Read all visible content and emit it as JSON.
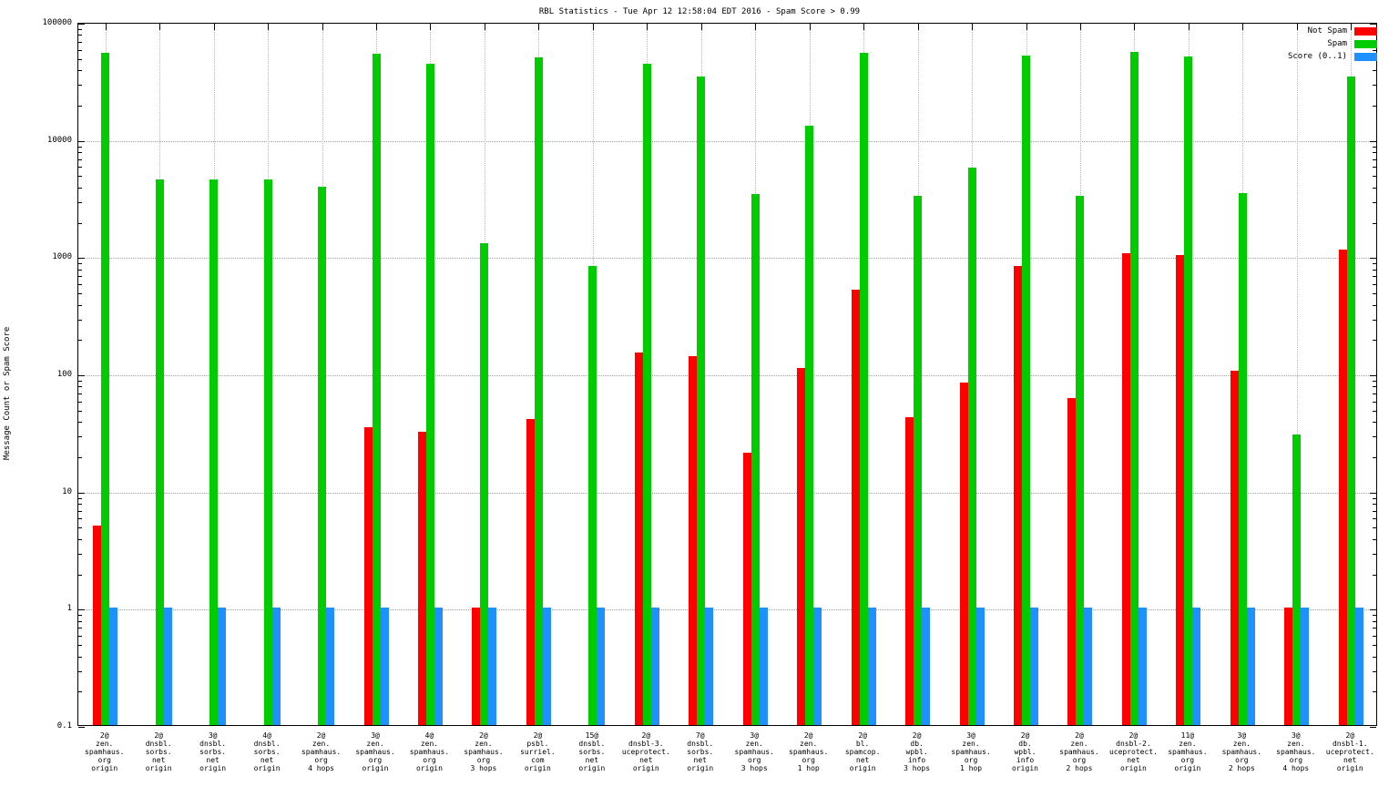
{
  "chart_data": {
    "type": "bar",
    "title": "RBL Statistics - Tue Apr 12 12:58:04 EDT 2016 - Spam Score > 0.99",
    "ylabel": "Message Count or Spam Score",
    "xlabel": "",
    "y_scale": "log",
    "ylim": [
      0.1,
      100000
    ],
    "y_ticks": [
      "100000",
      "10000",
      "1000",
      "100",
      "10",
      "1",
      "0.1"
    ],
    "grid": "dotted",
    "legend_position": "top-right",
    "categories": [
      [
        "2@",
        "zen.",
        "spamhaus.",
        "org",
        "origin"
      ],
      [
        "2@",
        "dnsbl.",
        "sorbs.",
        "net",
        "origin"
      ],
      [
        "3@",
        "dnsbl.",
        "sorbs.",
        "net",
        "origin"
      ],
      [
        "4@",
        "dnsbl.",
        "sorbs.",
        "net",
        "origin"
      ],
      [
        "2@",
        "zen.",
        "spamhaus.",
        "org",
        "4 hops"
      ],
      [
        "3@",
        "zen.",
        "spamhaus.",
        "org",
        "origin"
      ],
      [
        "4@",
        "zen.",
        "spamhaus.",
        "org",
        "origin"
      ],
      [
        "2@",
        "zen.",
        "spamhaus.",
        "org",
        "3 hops"
      ],
      [
        "2@",
        "psbl.",
        "surriel.",
        "com",
        "origin"
      ],
      [
        "15@",
        "dnsbl.",
        "sorbs.",
        "net",
        "origin"
      ],
      [
        "2@",
        "dnsbl-3.",
        "uceprotect.",
        "net",
        "origin"
      ],
      [
        "7@",
        "dnsbl.",
        "sorbs.",
        "net",
        "origin"
      ],
      [
        "3@",
        "zen.",
        "spamhaus.",
        "org",
        "3 hops"
      ],
      [
        "2@",
        "zen.",
        "spamhaus.",
        "org",
        "1 hop"
      ],
      [
        "2@",
        "bl.",
        "spamcop.",
        "net",
        "origin"
      ],
      [
        "2@",
        "db.",
        "wpbl.",
        "info",
        "3 hops"
      ],
      [
        "3@",
        "zen.",
        "spamhaus.",
        "org",
        "1 hop"
      ],
      [
        "2@",
        "db.",
        "wpbl.",
        "info",
        "origin"
      ],
      [
        "2@",
        "zen.",
        "spamhaus.",
        "org",
        "2 hops"
      ],
      [
        "2@",
        "dnsbl-2.",
        "uceprotect.",
        "net",
        "origin"
      ],
      [
        "11@",
        "zen.",
        "spamhaus.",
        "org",
        "origin"
      ],
      [
        "3@",
        "zen.",
        "spamhaus.",
        "org",
        "2 hops"
      ],
      [
        "3@",
        "zen.",
        "spamhaus.",
        "org",
        "4 hops"
      ],
      [
        "2@",
        "dnsbl-1.",
        "uceprotect.",
        "net",
        "origin"
      ]
    ],
    "series": [
      {
        "name": "Not Spam",
        "color": "#ff0000",
        "values": [
          5,
          0,
          0,
          0,
          0,
          35,
          32,
          1,
          41,
          0,
          150,
          140,
          21,
          112,
          520,
          42,
          83,
          830,
          62,
          1060,
          1030,
          105,
          1,
          1140
        ]
      },
      {
        "name": "Spam",
        "color": "#00cc00",
        "values": [
          54000,
          4500,
          4500,
          4500,
          3900,
          53000,
          44000,
          1300,
          50000,
          830,
          44000,
          34000,
          3400,
          13000,
          54000,
          3300,
          5700,
          52000,
          3250,
          55000,
          51000,
          3450,
          30,
          34000
        ]
      },
      {
        "name": "Score (0..1)",
        "color": "#1e90ff",
        "values": [
          1,
          1,
          1,
          1,
          1,
          1,
          1,
          1,
          1,
          1,
          1,
          1,
          1,
          1,
          1,
          1,
          1,
          1,
          1,
          1,
          1,
          1,
          1,
          1
        ]
      }
    ]
  }
}
